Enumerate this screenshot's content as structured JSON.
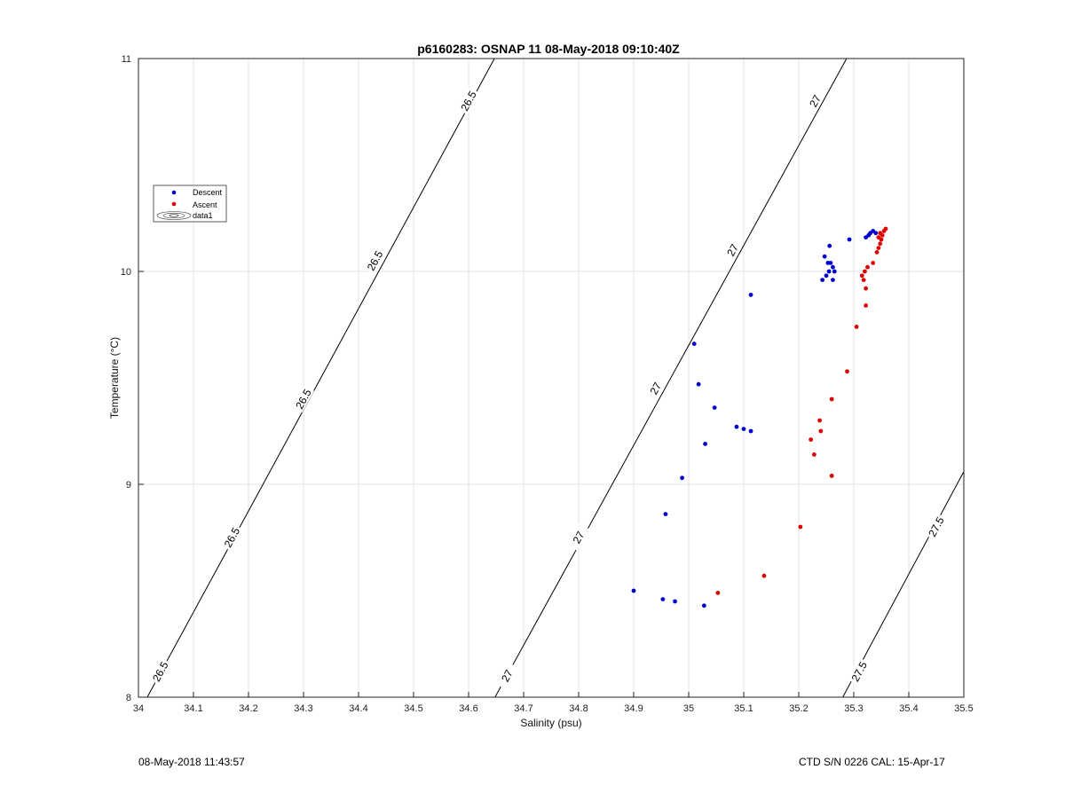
{
  "footer": {
    "timestamp": "08-May-2018 11:43:57",
    "instrument": "CTD S/N 0226  CAL: 15-Apr-17"
  },
  "chart_data": {
    "type": "scatter",
    "title": "p6160283: OSNAP 11 08-May-2018 09:10:40Z",
    "xlabel": "Salinity (psu)",
    "ylabel": "Temperature (°C)",
    "xlim": [
      34,
      35.5
    ],
    "ylim": [
      8,
      11
    ],
    "x_ticks": [
      "34",
      "34.1",
      "34.2",
      "34.3",
      "34.4",
      "34.5",
      "34.6",
      "34.7",
      "34.8",
      "34.9",
      "35",
      "35.1",
      "35.2",
      "35.3",
      "35.4",
      "35.5"
    ],
    "y_ticks": [
      "8",
      "9",
      "10",
      "11"
    ],
    "grid": true,
    "legend": {
      "placement": "left",
      "entries": [
        "Descent",
        "Ascent",
        "data1"
      ]
    },
    "series": [
      {
        "name": "Descent",
        "color": "#0000cc",
        "points": [
          [
            34.9,
            8.5
          ],
          [
            34.953,
            8.46
          ],
          [
            34.975,
            8.45
          ],
          [
            35.028,
            8.43
          ],
          [
            34.958,
            8.86
          ],
          [
            34.988,
            9.03
          ],
          [
            35.03,
            9.19
          ],
          [
            35.018,
            9.47
          ],
          [
            35.047,
            9.36
          ],
          [
            35.087,
            9.27
          ],
          [
            35.1,
            9.26
          ],
          [
            35.113,
            9.25
          ],
          [
            35.01,
            9.66
          ],
          [
            35.113,
            9.89
          ],
          [
            35.243,
            9.96
          ],
          [
            35.25,
            9.98
          ],
          [
            35.255,
            10.0
          ],
          [
            35.258,
            10.04
          ],
          [
            35.262,
            10.02
          ],
          [
            35.265,
            10.0
          ],
          [
            35.262,
            9.96
          ],
          [
            35.253,
            10.04
          ],
          [
            35.247,
            10.07
          ],
          [
            35.256,
            10.12
          ],
          [
            35.292,
            10.15
          ],
          [
            35.322,
            10.16
          ],
          [
            35.327,
            10.17
          ],
          [
            35.33,
            10.18
          ],
          [
            35.335,
            10.19
          ],
          [
            35.34,
            10.18
          ]
        ]
      },
      {
        "name": "Ascent",
        "color": "#dd0000",
        "points": [
          [
            35.053,
            8.49
          ],
          [
            35.137,
            8.57
          ],
          [
            35.203,
            8.8
          ],
          [
            35.26,
            9.04
          ],
          [
            35.228,
            9.14
          ],
          [
            35.222,
            9.21
          ],
          [
            35.24,
            9.25
          ],
          [
            35.238,
            9.3
          ],
          [
            35.26,
            9.4
          ],
          [
            35.288,
            9.53
          ],
          [
            35.305,
            9.74
          ],
          [
            35.322,
            9.84
          ],
          [
            35.322,
            9.92
          ],
          [
            35.318,
            9.96
          ],
          [
            35.315,
            9.98
          ],
          [
            35.32,
            10.0
          ],
          [
            35.325,
            10.02
          ],
          [
            35.335,
            10.04
          ],
          [
            35.342,
            10.09
          ],
          [
            35.345,
            10.11
          ],
          [
            35.348,
            10.13
          ],
          [
            35.35,
            10.15
          ],
          [
            35.345,
            10.16
          ],
          [
            35.352,
            10.17
          ],
          [
            35.348,
            10.18
          ],
          [
            35.355,
            10.19
          ],
          [
            35.358,
            10.2
          ]
        ]
      }
    ],
    "density_contours": [
      {
        "label": "26.5",
        "points": [
          [
            34.016,
            8.0
          ],
          [
            34.647,
            11.0
          ]
        ],
        "label_positions": [
          [
            34.04,
            8.12
          ],
          [
            34.17,
            8.75
          ],
          [
            34.3,
            9.4
          ],
          [
            34.43,
            10.05
          ],
          [
            34.6,
            10.8
          ]
        ]
      },
      {
        "label": "27",
        "points": [
          [
            34.648,
            8.0
          ],
          [
            35.287,
            11.0
          ]
        ],
        "label_positions": [
          [
            34.67,
            8.1
          ],
          [
            34.8,
            8.75
          ],
          [
            34.94,
            9.45
          ],
          [
            35.08,
            10.1
          ],
          [
            35.23,
            10.8
          ]
        ]
      },
      {
        "label": "27.5",
        "points": [
          [
            35.28,
            8.0
          ],
          [
            35.5,
            9.06
          ]
        ],
        "label_positions": [
          [
            35.31,
            8.12
          ],
          [
            35.45,
            8.8
          ]
        ]
      }
    ]
  }
}
